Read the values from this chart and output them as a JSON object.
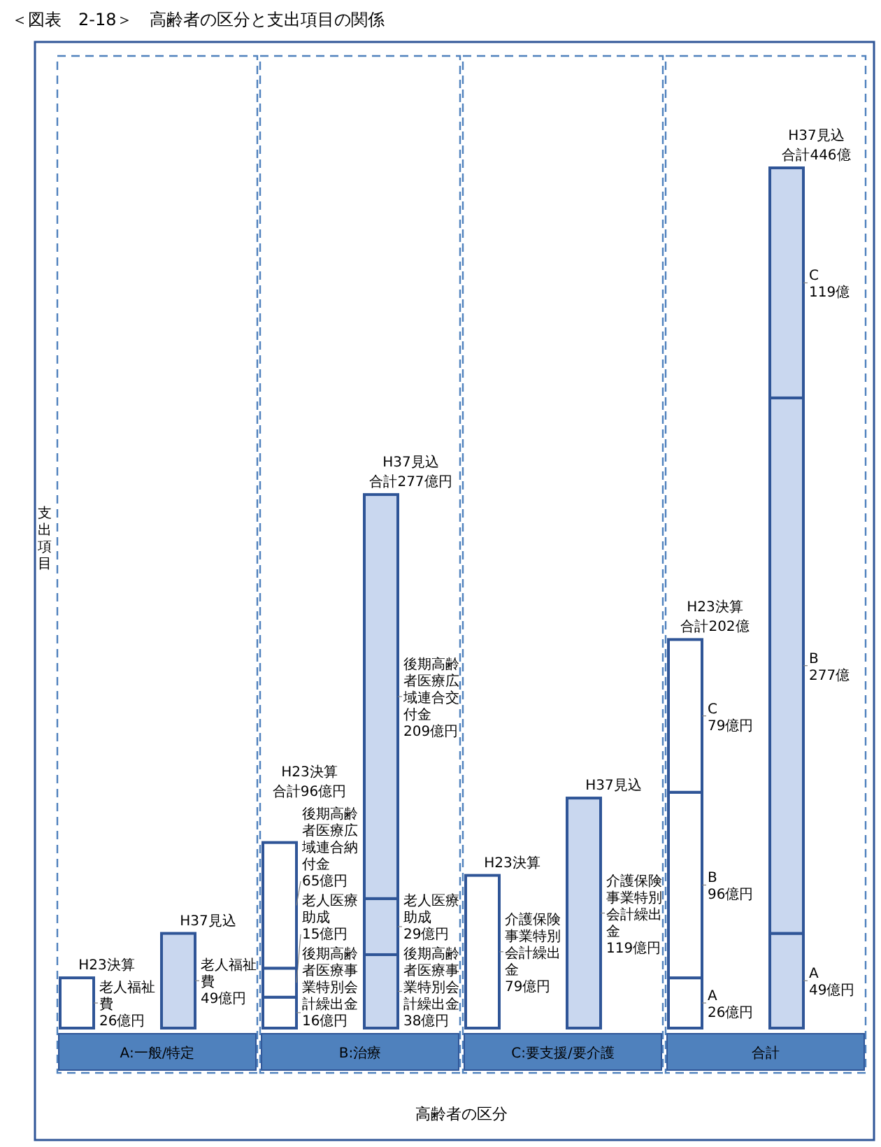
{
  "chart_data": {
    "type": "bar",
    "stacked": true,
    "title": "＜図表　2-18＞　高齢者の区分と支出項目の関係",
    "xlabel": "高齢者の区分",
    "ylabel": "支出項目",
    "categories": [
      "H23決算",
      "H37見込",
      "H23決算",
      "H37見込",
      "H23決算",
      "H37見込",
      "H23決算",
      "H37見込"
    ],
    "annotations": [
      "A:一般/特定",
      "B:治療",
      "C:要支援/要介護",
      "合計"
    ],
    "totals": [
      null,
      null,
      "合計96億円",
      "合計277億円",
      null,
      null,
      "合計202億",
      "合計446億"
    ],
    "series": [
      {
        "values": [
          26,
          49,
          16,
          38,
          79,
          119,
          26,
          49
        ],
        "colors": [
          "#ffffff",
          "#c9d7ef",
          "#ffffff",
          "#c9d7ef",
          "#ffffff",
          "#c9d7ef",
          "#ffffff",
          "#c9d7ef"
        ],
        "value_labels": [
          "老人福祉費 26億円",
          "老人福祉費 49億円",
          "後期高齢者医療事業特別会計繰出金 16億円",
          "後期高齢者医療事業特別会計繰出金 38億円",
          "介護保険事業特別会計繰出金 79億円",
          "介護保険事業特別会計繰出金 119億円",
          "A 26億円",
          "A 49億円"
        ]
      },
      {
        "values": [
          null,
          null,
          15,
          29,
          null,
          null,
          96,
          277
        ],
        "colors": [
          "#ffffff",
          "#c9d7ef",
          "#ffffff",
          "#c9d7ef",
          "#ffffff",
          "#c9d7ef",
          "#ffffff",
          "#c9d7ef"
        ],
        "value_labels": [
          null,
          null,
          "老人医療助成 15億円",
          "老人医療助成 29億円",
          null,
          null,
          "B 96億円",
          "B 277億"
        ]
      },
      {
        "values": [
          null,
          null,
          65,
          209,
          null,
          null,
          79,
          119
        ],
        "colors": [
          "#ffffff",
          "#c9d7ef",
          "#ffffff",
          "#c9d7ef",
          "#ffffff",
          "#c9d7ef",
          "#ffffff",
          "#c9d7ef"
        ],
        "value_labels": [
          null,
          null,
          "後期高齢者医療広域連合納付金 65億円",
          "後期高齢者医療広域連合交付金 209億円",
          null,
          null,
          "C 79億円",
          "C 119億"
        ]
      }
    ]
  }
}
